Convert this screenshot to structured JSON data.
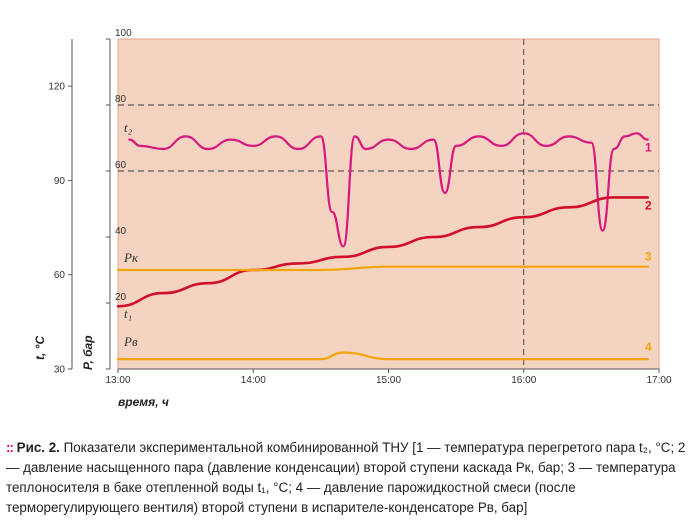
{
  "chart_data": {
    "type": "line",
    "xlabel": "время, ч",
    "x_ticks": [
      "13:00",
      "14:00",
      "15:00",
      "16:00",
      "17:00"
    ],
    "x_range": [
      "13:00",
      "17:00"
    ],
    "y_axes": [
      {
        "label": "t, °C",
        "ticks": [
          "30",
          "60",
          "90",
          "120"
        ],
        "range": [
          30,
          135
        ]
      },
      {
        "label": "P, бар",
        "ticks": [
          "",
          "20",
          "40",
          "60",
          "80",
          "100"
        ],
        "range": [
          0,
          100
        ]
      }
    ],
    "grid": "dashed horizontal at 80 and 60 (P axis), vertical at 16:00",
    "curve_labels": {
      "t2": "t₂",
      "t1": "t₁",
      "Pk": "Pк",
      "Pv": "Pв"
    },
    "series": [
      {
        "name": "1",
        "label": "t₂",
        "color": "#d6197f",
        "axis": "t",
        "x": [
          "13:05",
          "13:10",
          "13:20",
          "13:30",
          "13:40",
          "13:50",
          "14:00",
          "14:10",
          "14:20",
          "14:30",
          "14:35",
          "14:40",
          "14:45",
          "14:50",
          "15:00",
          "15:10",
          "15:20",
          "15:25",
          "15:30",
          "15:40",
          "15:50",
          "16:00",
          "16:10",
          "16:20",
          "16:30",
          "16:35",
          "16:40",
          "16:45",
          "16:50",
          "16:55"
        ],
        "values": [
          103,
          101,
          100,
          104,
          100,
          103,
          101,
          104,
          100,
          104,
          80,
          69,
          104,
          100,
          103,
          100,
          103,
          86,
          101,
          104,
          101,
          105,
          101,
          104,
          102,
          74,
          100,
          104,
          105,
          103
        ]
      },
      {
        "name": "2",
        "label": "Pк",
        "color": "#d0102a",
        "axis": "P",
        "x": [
          "13:00",
          "13:20",
          "13:40",
          "14:00",
          "14:20",
          "14:40",
          "15:00",
          "15:20",
          "15:40",
          "16:00",
          "16:20",
          "16:40",
          "16:55"
        ],
        "values": [
          19,
          23,
          26,
          30,
          32,
          34,
          37,
          40,
          43,
          46,
          49,
          52,
          52
        ]
      },
      {
        "name": "3",
        "label": "t₁",
        "color": "#f2a40a",
        "axis": "P",
        "x": [
          "13:00",
          "13:30",
          "14:00",
          "14:30",
          "15:00",
          "15:30",
          "16:00",
          "16:30",
          "16:55"
        ],
        "values": [
          30,
          30,
          30,
          30,
          31,
          31,
          31,
          31,
          31
        ]
      },
      {
        "name": "4",
        "label": "Pв",
        "color": "#f2a40a",
        "axis": "P",
        "x": [
          "13:00",
          "13:30",
          "14:00",
          "14:30",
          "14:40",
          "15:00",
          "15:30",
          "16:00",
          "16:30",
          "16:55"
        ],
        "values": [
          3,
          3,
          3,
          3,
          5,
          3,
          3,
          3,
          3,
          3
        ]
      }
    ]
  },
  "caption": {
    "bullet": "::",
    "title": "Рис. 2.",
    "text": " Показатели экспериментальной комбинированной ТНУ [1 — температура перегретого пара t₂, °C; 2 — давление насыщенного пара (давление конденсации) второй ступени каскада Pк, бар; 3 — температура теплоносителя в баке отепленной воды t₁, °C; 4 — давление парожидкостной смеси (после терморегулирующего вентиля) второй ступени в испарителе-конденсаторе Pв, бар]"
  },
  "colors": {
    "plot_bg": "#f4d3c0",
    "frame": "#e3a48a",
    "accent": "#e3007b"
  }
}
